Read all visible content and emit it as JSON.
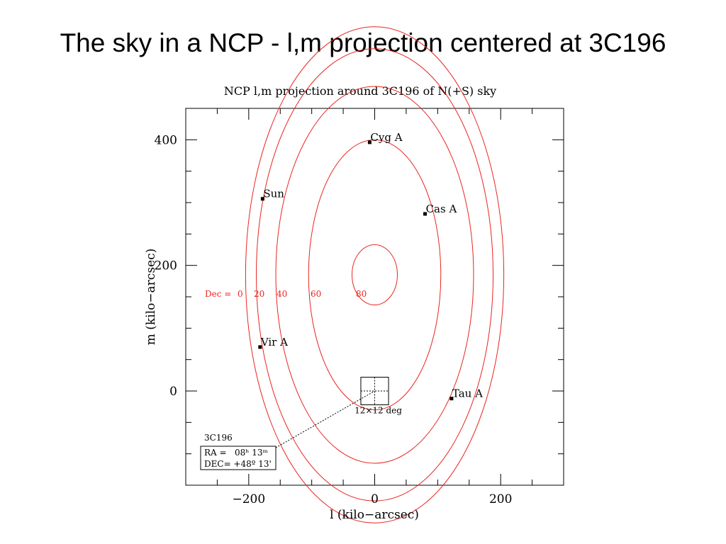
{
  "slide": {
    "title": "The sky in a NCP - l,m projection centered at 3C196"
  },
  "chart_data": {
    "type": "scatter",
    "title": "NCP l,m projection around 3C196 of  N(+S) sky",
    "xlabel": "l (kilo−arcsec)",
    "ylabel": "m (kilo−arcsec)",
    "xlim": [
      -300,
      300
    ],
    "ylim": [
      -150,
      450
    ],
    "x_ticks": [
      -200,
      0,
      200
    ],
    "x_tick_labels": [
      "−200",
      "0",
      "200"
    ],
    "y_ticks": [
      0,
      200,
      400
    ],
    "y_tick_labels": [
      "0",
      "200",
      "400"
    ],
    "grid": false,
    "colors": {
      "contours": "#e8251f",
      "frame": "#000000",
      "text": "#000000"
    },
    "dec_contours": {
      "label_prefix": "Dec = ",
      "center_x": 0,
      "levels": [
        {
          "label": "0",
          "cy": 185,
          "ry": 395,
          "rx": 205
        },
        {
          "label": "20",
          "cy": 185,
          "ry": 360,
          "rx": 188
        },
        {
          "label": "40",
          "cy": 185,
          "ry": 300,
          "rx": 157
        },
        {
          "label": "60",
          "cy": 185,
          "ry": 215,
          "rx": 105
        },
        {
          "label": "80",
          "cy": 185,
          "ry": 48,
          "rx": 36
        }
      ]
    },
    "sources": [
      {
        "name": "Cyg A",
        "x": -8,
        "y": 396
      },
      {
        "name": "Sun",
        "x": -178,
        "y": 306
      },
      {
        "name": "Cas A",
        "x": 80,
        "y": 282
      },
      {
        "name": "Vir A",
        "x": -182,
        "y": 70
      },
      {
        "name": "Tau A",
        "x": 122,
        "y": -12
      }
    ],
    "field_box": {
      "label": "12×12 deg",
      "center": [
        0,
        0
      ],
      "half_size": 22
    },
    "reference": {
      "name": "3C196",
      "ra": "RA =   08ʰ 13ᵐ",
      "dec": "DEC= +48º 13'"
    }
  }
}
